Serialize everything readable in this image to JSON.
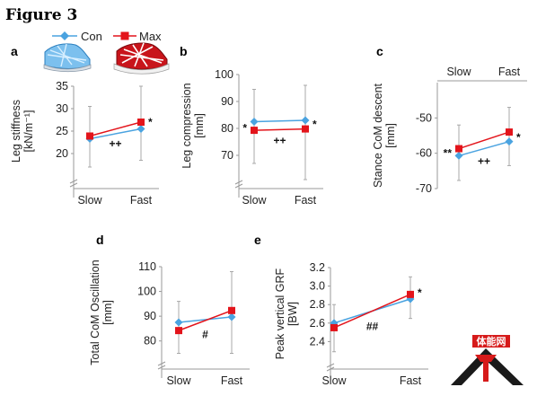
{
  "figure_title": "Figure 3",
  "legend": {
    "items": [
      {
        "name": "Con",
        "color": "#4aa3e0",
        "marker": "diamond"
      },
      {
        "name": "Max",
        "color": "#e3141b",
        "marker": "square"
      }
    ]
  },
  "colors": {
    "con": "#4aa3e0",
    "max": "#e3141b",
    "axis": "#9a9a9a",
    "errorbar": "#a8a8a8"
  },
  "logo": {
    "text": "体能网"
  },
  "chart_data": [
    {
      "id": "a",
      "panel_label": "a",
      "type": "line",
      "categories": [
        "Slow",
        "Fast"
      ],
      "ylabel": [
        "Leg stiffness",
        "[kN/m⁻¹]"
      ],
      "ylim": [
        15,
        35
      ],
      "yticks": [
        20,
        25,
        30,
        35
      ],
      "x_axis_position": "bottom",
      "axis_break": true,
      "grid": false,
      "series": [
        {
          "name": "Con",
          "values": [
            23.3,
            25.5
          ],
          "err_low": [
            17,
            18.5
          ],
          "err_high": [
            30.5,
            35
          ]
        },
        {
          "name": "Max",
          "values": [
            23.9,
            27.0
          ]
        }
      ],
      "annotations": [
        {
          "text": "*",
          "at": "Fast",
          "side": "right",
          "y": 27.0
        },
        {
          "text": "++",
          "at": "between",
          "y": 22.2
        }
      ]
    },
    {
      "id": "b",
      "panel_label": "b",
      "type": "line",
      "categories": [
        "Slow",
        "Fast"
      ],
      "ylabel": [
        "Leg compression",
        "[mm]"
      ],
      "ylim": [
        62,
        100
      ],
      "yticks": [
        70,
        80,
        90,
        100
      ],
      "x_axis_position": "bottom",
      "axis_break": true,
      "grid": false,
      "series": [
        {
          "name": "Con",
          "values": [
            82.5,
            83.0
          ],
          "err_low": [
            67,
            61
          ],
          "err_high": [
            94.5,
            96
          ]
        },
        {
          "name": "Max",
          "values": [
            79.3,
            79.8
          ]
        }
      ],
      "annotations": [
        {
          "text": "*",
          "at": "Slow",
          "side": "left",
          "y": 80.2
        },
        {
          "text": "*",
          "at": "Fast",
          "side": "right",
          "y": 81.5
        },
        {
          "text": "++",
          "at": "between",
          "y": 75.5
        }
      ]
    },
    {
      "id": "c",
      "panel_label": "c",
      "type": "line",
      "categories": [
        "Slow",
        "Fast"
      ],
      "ylabel": [
        "Stance CoM descent",
        "[mm]"
      ],
      "ylim": [
        -70,
        -40
      ],
      "yticks": [
        -50,
        -60,
        -70
      ],
      "x_axis_position": "top",
      "axis_break": false,
      "grid": false,
      "series": [
        {
          "name": "Con",
          "values": [
            -60.7,
            -56.7
          ],
          "err_low": [
            -67.7,
            -63.5
          ],
          "err_high": [
            -52,
            -47
          ]
        },
        {
          "name": "Max",
          "values": [
            -58.7,
            -54.0
          ]
        }
      ],
      "annotations": [
        {
          "text": "**",
          "at": "Slow",
          "side": "left",
          "y": -60
        },
        {
          "text": "*",
          "at": "Fast",
          "side": "right",
          "y": -55.5
        },
        {
          "text": "++",
          "at": "between",
          "y": -62.3
        }
      ]
    },
    {
      "id": "d",
      "panel_label": "d",
      "type": "line",
      "categories": [
        "Slow",
        "Fast"
      ],
      "ylabel": [
        "Total CoM Oscillation",
        "[mm]"
      ],
      "ylim": [
        73,
        110
      ],
      "yticks": [
        80,
        90,
        100,
        110
      ],
      "x_axis_position": "bottom",
      "axis_break": true,
      "grid": false,
      "series": [
        {
          "name": "Con",
          "values": [
            87.5,
            89.7
          ],
          "err_low": [
            75,
            75
          ],
          "err_high": [
            96,
            108
          ]
        },
        {
          "name": "Max",
          "values": [
            84.2,
            92.3
          ]
        }
      ],
      "annotations": [
        {
          "text": "#",
          "at": "between",
          "y": 82.7
        }
      ]
    },
    {
      "id": "e",
      "panel_label": "e",
      "type": "line",
      "categories": [
        "Slow",
        "Fast"
      ],
      "ylabel": [
        "Peak vertical GRF",
        "[BW]"
      ],
      "ylim": [
        2.2,
        3.2
      ],
      "yticks": [
        2.4,
        2.6,
        2.8,
        3.0,
        3.2
      ],
      "x_axis_position": "bottom",
      "axis_break": true,
      "grid": false,
      "series": [
        {
          "name": "Con",
          "values": [
            2.6,
            2.86
          ],
          "err_low": [
            2.29,
            2.65
          ],
          "err_high": [
            2.8,
            3.1
          ]
        },
        {
          "name": "Max",
          "values": [
            2.55,
            2.91
          ]
        }
      ],
      "annotations": [
        {
          "text": "*",
          "at": "Fast",
          "side": "right",
          "y": 2.93
        },
        {
          "text": "##",
          "at": "between",
          "y": 2.565
        }
      ]
    }
  ]
}
